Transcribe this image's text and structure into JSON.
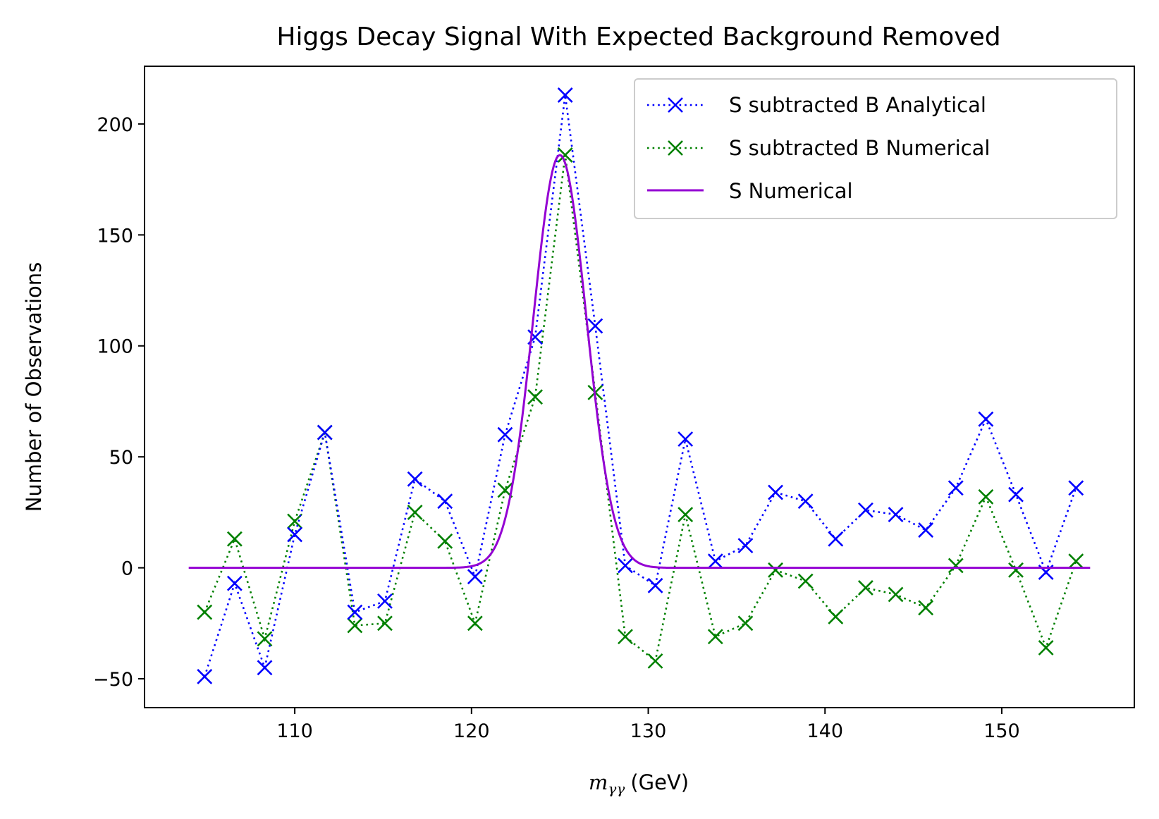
{
  "chart_data": {
    "type": "line",
    "title": "Higgs Decay Signal With Expected Background Removed",
    "xlabel_symbol": "m",
    "xlabel_subscript": "γγ",
    "xlabel_unit": "(GeV)",
    "ylabel": "Number of Observations",
    "xlim": [
      101.5,
      157.5
    ],
    "ylim": [
      -63,
      226
    ],
    "x_ticks": [
      110,
      120,
      130,
      140,
      150
    ],
    "y_ticks": [
      -50,
      0,
      50,
      100,
      150,
      200
    ],
    "y_tick_labels": [
      "−50",
      "0",
      "50",
      "100",
      "150",
      "200"
    ],
    "legend_position": "upper right",
    "grid": false,
    "x": [
      104.9,
      106.6,
      108.3,
      110.0,
      111.7,
      113.4,
      115.1,
      116.8,
      118.5,
      120.2,
      121.9,
      123.6,
      125.3,
      127.0,
      128.7,
      130.4,
      132.1,
      133.8,
      135.5,
      137.2,
      138.9,
      140.6,
      142.3,
      144.0,
      145.7,
      147.4,
      149.1,
      150.8,
      152.5,
      154.2
    ],
    "series": [
      {
        "name": "S subtracted B Analytical",
        "color": "#0000ff",
        "style": "dotted-x",
        "values": [
          -49,
          -7,
          -45,
          15,
          61,
          -20,
          -15,
          40,
          30,
          -4,
          60,
          104,
          213,
          109,
          1,
          -8,
          58,
          3,
          10,
          34,
          30,
          13,
          26,
          24,
          17,
          36,
          67,
          33,
          -2,
          36
        ]
      },
      {
        "name": "S subtracted B Numerical",
        "color": "#008000",
        "style": "dotted-x",
        "values": [
          -20,
          13,
          -32,
          21,
          61,
          -26,
          -25,
          25,
          12,
          -25,
          35,
          77,
          186,
          79,
          -31,
          -42,
          24,
          -31,
          -25,
          -1,
          -6,
          -22,
          -9,
          -12,
          -18,
          1,
          32,
          -1,
          -36,
          3
        ]
      },
      {
        "name": "S Numerical",
        "color": "#9400d3",
        "style": "solid",
        "function": {
          "kind": "gaussian",
          "amplitude": 186,
          "mean": 125.0,
          "sigma": 1.5,
          "x_start": 104,
          "x_end": 155
        }
      }
    ]
  }
}
